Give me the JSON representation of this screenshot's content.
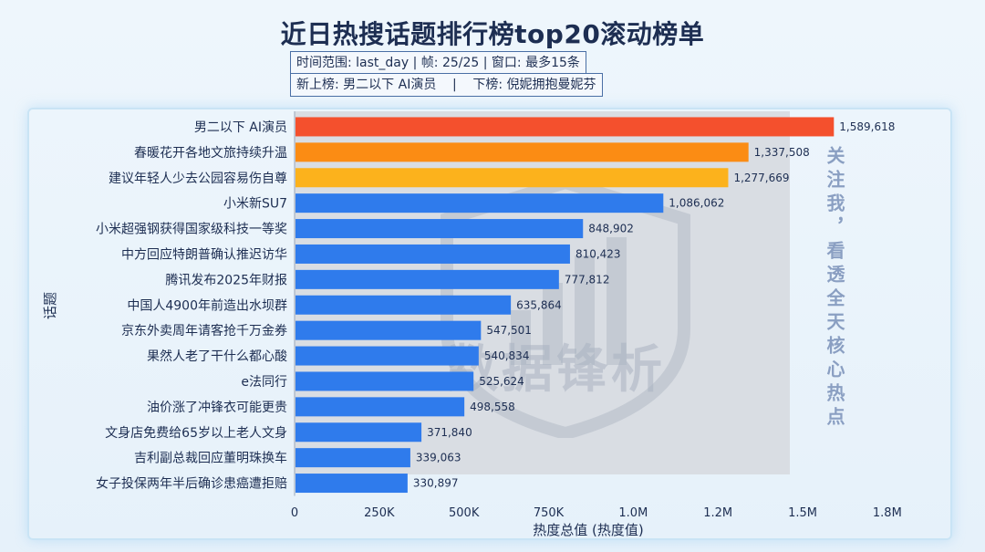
{
  "chart_data": {
    "type": "bar",
    "orientation": "horizontal",
    "title": "近日热搜话题排行榜top20滚动榜单",
    "info": {
      "line1": "时间范围: last_day | 帧: 25/25 | 窗口: 最多15条",
      "new_on_list_label": "新上榜: 男二以下 AI演员",
      "off_list_label": "下榜: 倪妮拥抱曼妮芬",
      "separator": "|"
    },
    "xlabel": "热度总值 (热度值)",
    "ylabel": "话题",
    "xlim": [
      0,
      1850000
    ],
    "xticks": [
      {
        "value": 0,
        "label": "0"
      },
      {
        "value": 250000,
        "label": "250K"
      },
      {
        "value": 500000,
        "label": "500K"
      },
      {
        "value": 750000,
        "label": "750K"
      },
      {
        "value": 1000000,
        "label": "1.0M"
      },
      {
        "value": 1250000,
        "label": "1.2M"
      },
      {
        "value": 1500000,
        "label": "1.5M"
      },
      {
        "value": 1750000,
        "label": "1.8M"
      }
    ],
    "categories": [
      "男二以下 AI演员",
      "春暖花开各地文旅持续升温",
      "建议年轻人少去公园容易伤自尊",
      "小米新SU7",
      "小米超强钢获得国家级科技一等奖",
      "中方回应特朗普确认推迟访华",
      "腾讯发布2025年财报",
      "中国人4900年前造出水坝群",
      "京东外卖周年请客抢千万金券",
      "果然人老了干什么都心酸",
      "e法同行",
      "油价涨了冲锋衣可能更贵",
      "文身店免费给65岁以上老人文身",
      "吉利副总裁回应董明珠换车",
      "女子投保两年半后确诊患癌遭拒赔"
    ],
    "values": [
      1589618,
      1337508,
      1277669,
      1086062,
      848902,
      810423,
      777812,
      635864,
      547501,
      540834,
      525624,
      498558,
      371840,
      339063,
      330897
    ],
    "value_labels": [
      "1,589,618",
      "1,337,508",
      "1,277,669",
      "1,086,062",
      "848,902",
      "810,423",
      "777,812",
      "635,864",
      "547,501",
      "540,834",
      "525,624",
      "498,558",
      "371,840",
      "339,063",
      "330,897"
    ],
    "colors": {
      "rank1": "#f4502d",
      "rank2": "#fb8c14",
      "rank3": "#fcb21c",
      "default": "#2f7bec"
    }
  },
  "decor": {
    "watermark": "数据锋析",
    "side_text": "关注我，看透全天核心热点"
  }
}
